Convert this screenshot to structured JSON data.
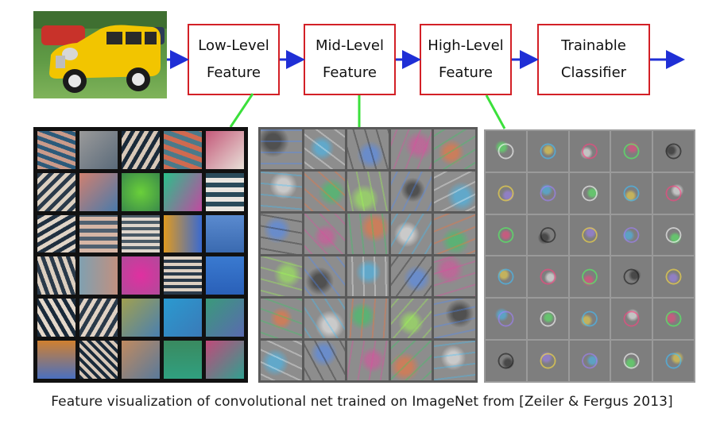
{
  "pipeline": {
    "stages": [
      {
        "line1": "Low-Level",
        "line2": "Feature"
      },
      {
        "line1": "Mid-Level",
        "line2": "Feature"
      },
      {
        "line1": "High-Level",
        "line2": "Feature"
      },
      {
        "line1": "Trainable",
        "line2": "Classifier"
      }
    ]
  },
  "colors": {
    "box_border": "#d32026",
    "flow_arrow": "#1f2fd6",
    "link_line": "#3be03b"
  },
  "caption": "Feature visualization of convolutional net trained on ImageNet from [Zeiler & Fergus 2013]"
}
